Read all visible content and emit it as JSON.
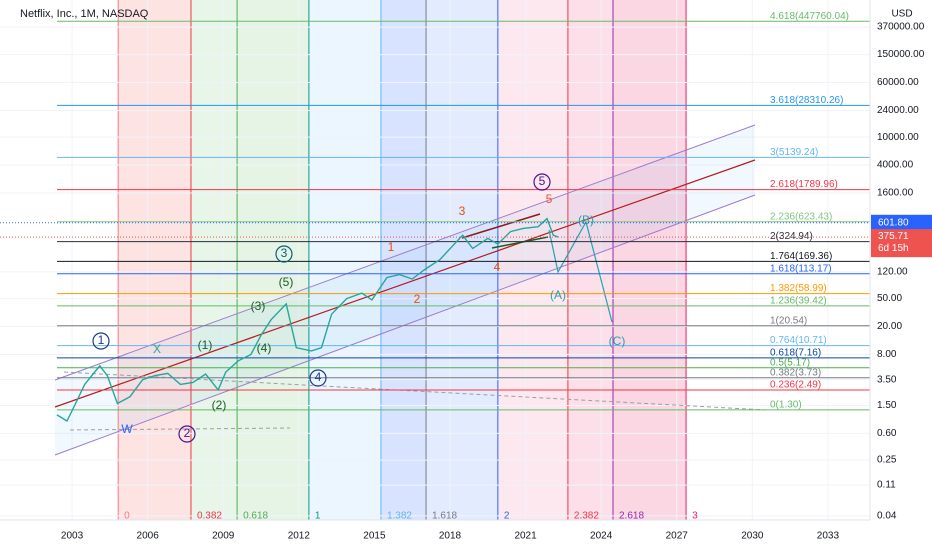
{
  "chart_data": {
    "type": "line",
    "title": "Netflix, Inc., 1M, NASDAQ",
    "currency": "USD",
    "log_scale": true,
    "grid": true,
    "color": "#26a69a",
    "x": [
      2002.4,
      2002.8,
      2003.1,
      2003.5,
      2003.9,
      2004.1,
      2004.4,
      2004.8,
      2005.3,
      2005.8,
      2006.3,
      2006.8,
      2007.3,
      2007.8,
      2008.3,
      2008.8,
      2009.1,
      2009.6,
      2010.1,
      2010.5,
      2010.9,
      2011.5,
      2011.9,
      2012.5,
      2012.9,
      2013.3,
      2013.9,
      2014.5,
      2014.9,
      2015.5,
      2016.0,
      2016.5,
      2017.0,
      2017.6,
      2018.5,
      2018.9,
      2019.5,
      2019.9,
      2020.4,
      2020.9,
      2021.5,
      2021.85,
      2022.1,
      2022.3
    ],
    "values": [
      1.1,
      0.9,
      1.5,
      3.0,
      4.5,
      5.5,
      4.0,
      1.6,
      2.0,
      3.5,
      4.0,
      4.3,
      3.0,
      3.2,
      4.2,
      2.5,
      4.5,
      6.5,
      8,
      15,
      25,
      42,
      10,
      9,
      10,
      30,
      50,
      60,
      48,
      100,
      110,
      95,
      130,
      180,
      400,
      260,
      360,
      300,
      450,
      500,
      530,
      690,
      400,
      375.71
    ],
    "xlim": [
      2000.14,
      2034.67
    ],
    "xticks": [
      2003,
      2006,
      2009,
      2012,
      2015,
      2018,
      2021,
      2024,
      2027,
      2030,
      2033
    ],
    "ylim": [
      0.035,
      900000
    ],
    "yticks": [
      {
        "value": 370000,
        "label": "370000.00"
      },
      {
        "value": 150000,
        "label": "150000.00"
      },
      {
        "value": 60000,
        "label": "60000.00"
      },
      {
        "value": 24000,
        "label": "24000.00"
      },
      {
        "value": 10000,
        "label": "10000.00"
      },
      {
        "value": 4000,
        "label": "4000.00"
      },
      {
        "value": 1600,
        "label": "1600.00"
      },
      {
        "value": 120,
        "label": "120.00"
      },
      {
        "value": 50,
        "label": "50.00"
      },
      {
        "value": 20,
        "label": "20.00"
      },
      {
        "value": 8,
        "label": "8.00"
      },
      {
        "value": 3.5,
        "label": "3.50"
      },
      {
        "value": 1.5,
        "label": "1.50"
      },
      {
        "value": 0.6,
        "label": "0.60"
      },
      0.25,
      0.11,
      0.04
    ],
    "last_price": {
      "value": 601.8,
      "label": "601.80",
      "color": "#2962ff"
    },
    "current_price": {
      "value": 375.71,
      "color": "#ef5350"
    },
    "countdown": "6d 15h",
    "fib_levels": [
      {
        "value": 447760.04,
        "label": "4.618(447760.04)",
        "color": "#66bb6a"
      },
      {
        "value": 28310.26,
        "label": "3.618(28310.26)",
        "color": "#2196f3"
      },
      {
        "value": 5139.24,
        "label": "3(5139.24)",
        "color": "#64b5f6"
      },
      {
        "value": 1789.96,
        "label": "2.618(1789.96)",
        "color": "#f23645"
      },
      {
        "value": 623.43,
        "label": "2.236(623.43)",
        "color": "#81c784"
      },
      {
        "value": 324.94,
        "label": "2(324.94)",
        "color": "#2a2e39"
      },
      {
        "value": 169.36,
        "label": "1.764(169.36)",
        "color": "#131722"
      },
      {
        "value": 113.17,
        "label": "1.618(113.17)",
        "color": "#2962ff"
      },
      {
        "value": 58.99,
        "label": "1.382(58.99)",
        "color": "#ff9800"
      },
      {
        "value": 39.42,
        "label": "1.236(39.42)",
        "color": "#66bb6a"
      },
      {
        "value": 20.54,
        "label": "1(20.54)",
        "color": "#787b86"
      },
      {
        "value": 10.71,
        "label": "0.764(10.71)",
        "color": "#64b5f6"
      },
      {
        "value": 7.16,
        "label": "0.618(7.16)",
        "color": "#0d47a1"
      },
      {
        "value": 5.17,
        "label": "0.5(5.17)",
        "color": "#4caf50"
      },
      {
        "value": 3.73,
        "label": "0.382(3.73)",
        "color": "#787b86"
      },
      {
        "value": 2.49,
        "label": "0.236(2.49)",
        "color": "#f23645"
      },
      {
        "value": 1.3,
        "label": "0(1.30)",
        "color": "#66bb6a"
      }
    ],
    "time_fib": [
      {
        "x": 2004.83,
        "label": "0",
        "color": "#f77c80",
        "fill": "rgba(244,67,54,0.14)"
      },
      {
        "x": 2007.72,
        "label": "0.382",
        "color": "#f23645",
        "fill": "rgba(129,199,132,0.18)"
      },
      {
        "x": 2009.55,
        "label": "0.618",
        "color": "#4caf50",
        "fill": "rgba(76,175,80,0.14)"
      },
      {
        "x": 2012.4,
        "label": "1",
        "color": "#089981",
        "fill": "rgba(33,150,243,0.09)"
      },
      {
        "x": 2015.26,
        "label": "1.382",
        "color": "#64b5f6",
        "fill": "rgba(41,98,255,0.18)"
      },
      {
        "x": 2017.05,
        "label": "1.618",
        "color": "#787b86",
        "fill": "rgba(41,98,255,0.13)"
      },
      {
        "x": 2019.9,
        "label": "2",
        "color": "#2962ff",
        "fill": "rgba(233,30,99,0.10)"
      },
      {
        "x": 2022.68,
        "label": "2.382",
        "color": "#f23645",
        "fill": "rgba(233,30,99,0.14)"
      },
      {
        "x": 2024.47,
        "label": "2.618",
        "color": "#9c27b0",
        "fill": "rgba(233,30,99,0.18)"
      },
      {
        "x": 2027.37,
        "label": "3",
        "color": "#e91e63"
      }
    ],
    "annotations": [
      {
        "text": "1",
        "color": "#1a3a8f",
        "circled": true
      },
      {
        "text": "X",
        "color": "#26a69a"
      },
      {
        "text": "W",
        "color": "#2962ff"
      },
      {
        "text": "2",
        "color": "#4a148c",
        "circled": true
      },
      {
        "text": "(1)",
        "color": "#1b5e20"
      },
      {
        "text": "(2)",
        "color": "#1b5e20"
      },
      {
        "text": "(3)",
        "color": "#1b5e20"
      },
      {
        "text": "(4)",
        "color": "#1b5e20"
      },
      {
        "text": "(5)",
        "color": "#1b5e20"
      },
      {
        "text": "3",
        "color": "#0a5e7a",
        "circled": true
      },
      {
        "text": "4",
        "color": "#1e3a8a",
        "circled": true
      },
      {
        "text": "1",
        "color": "#e65100"
      },
      {
        "text": "2",
        "color": "#e65100"
      },
      {
        "text": "3",
        "color": "#e65100"
      },
      {
        "text": "4",
        "color": "#e65100"
      },
      {
        "text": "5",
        "color": "#f4511e"
      },
      {
        "text": "5",
        "color": "#4a148c",
        "circled": true
      },
      {
        "text": "(B)",
        "color": "#26a0b0"
      },
      {
        "text": "(A)",
        "color": "#26a0b0"
      },
      {
        "text": "(C)",
        "color": "#26a0b0"
      }
    ]
  }
}
